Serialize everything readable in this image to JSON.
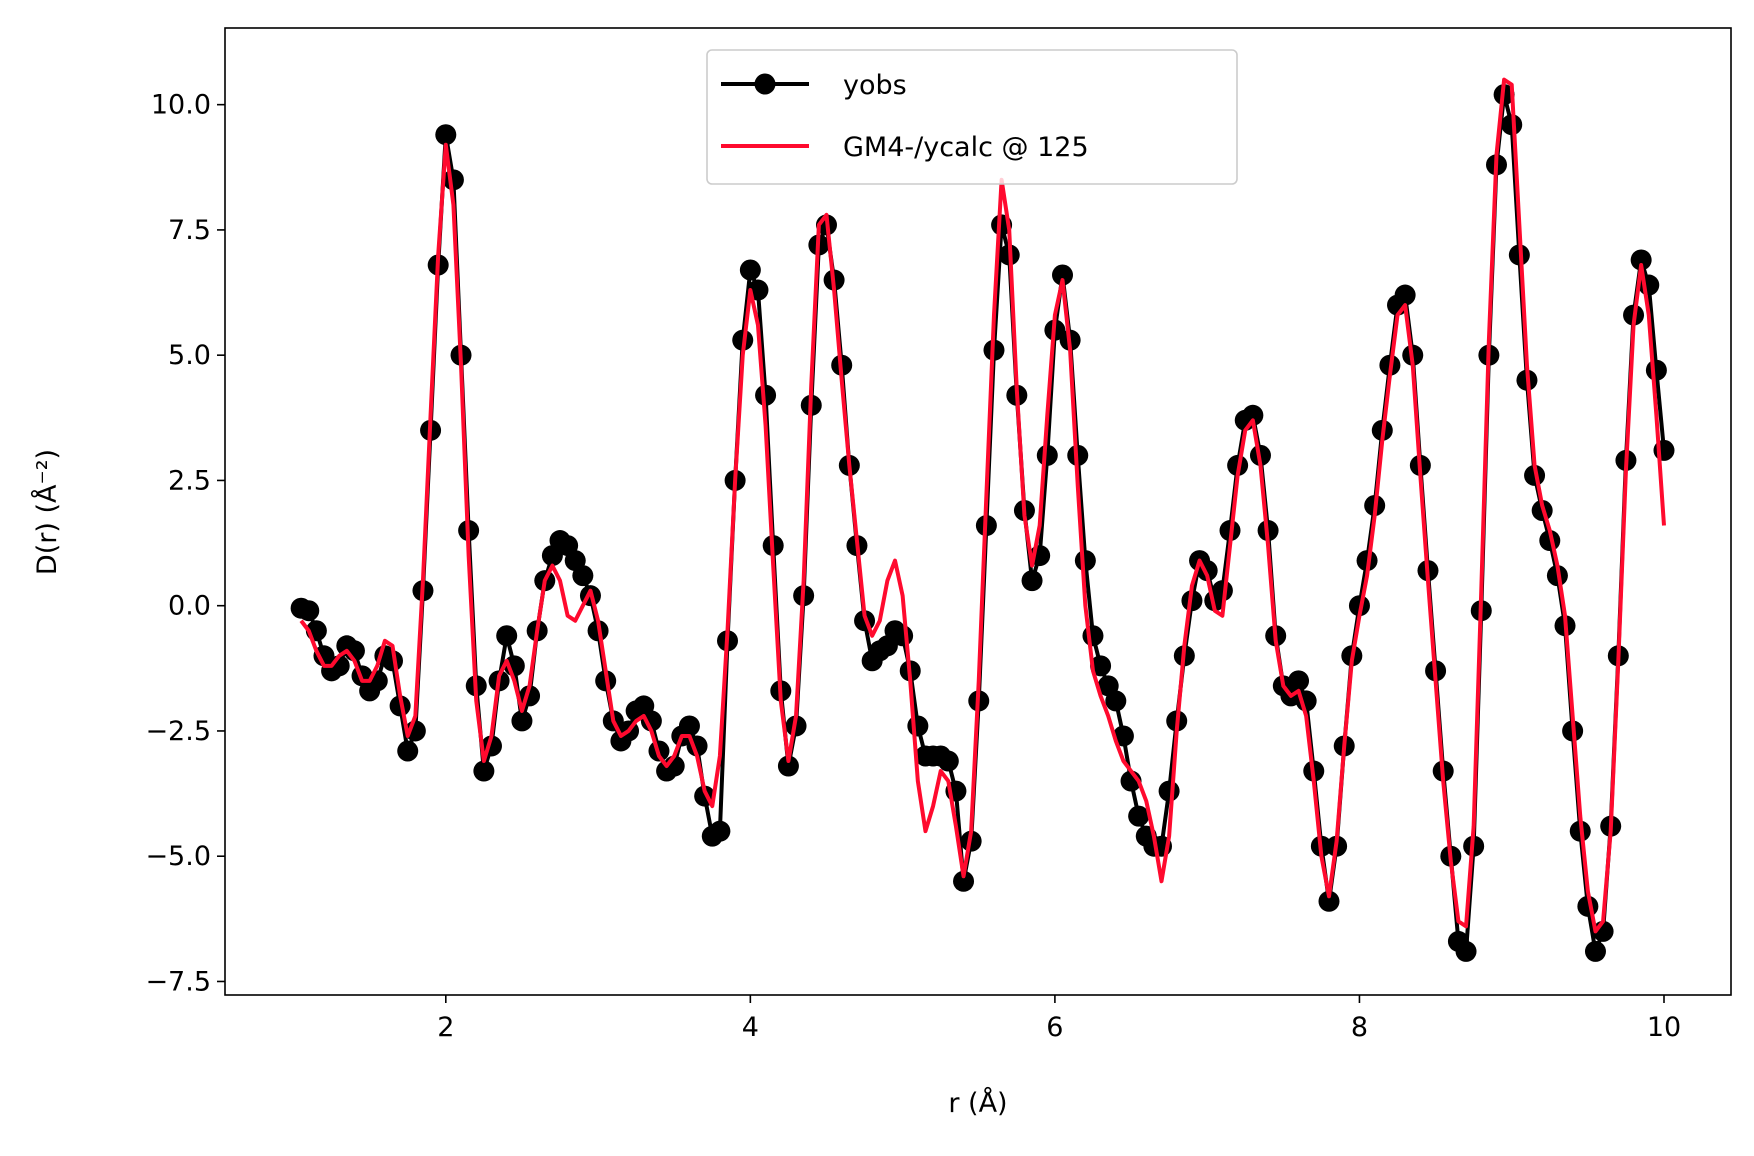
{
  "chart_data": {
    "type": "line",
    "xlabel": "r (Å)",
    "ylabel": "D(r) (Å⁻²)",
    "x": [
      1.05,
      1.1,
      1.15,
      1.2,
      1.25,
      1.3,
      1.35,
      1.4,
      1.45,
      1.5,
      1.55,
      1.6,
      1.65,
      1.7,
      1.75,
      1.8,
      1.85,
      1.9,
      1.95,
      2.0,
      2.05,
      2.1,
      2.15,
      2.2,
      2.25,
      2.3,
      2.35,
      2.4,
      2.45,
      2.5,
      2.55,
      2.6,
      2.65,
      2.7,
      2.75,
      2.8,
      2.85,
      2.9,
      2.95,
      3.0,
      3.05,
      3.1,
      3.15,
      3.2,
      3.25,
      3.3,
      3.35,
      3.4,
      3.45,
      3.5,
      3.55,
      3.6,
      3.65,
      3.7,
      3.75,
      3.8,
      3.85,
      3.9,
      3.95,
      4.0,
      4.05,
      4.1,
      4.15,
      4.2,
      4.25,
      4.3,
      4.35,
      4.4,
      4.45,
      4.5,
      4.55,
      4.6,
      4.65,
      4.7,
      4.75,
      4.8,
      4.85,
      4.9,
      4.95,
      5.0,
      5.05,
      5.1,
      5.15,
      5.2,
      5.25,
      5.3,
      5.35,
      5.4,
      5.45,
      5.5,
      5.55,
      5.6,
      5.65,
      5.7,
      5.75,
      5.8,
      5.85,
      5.9,
      5.95,
      6.0,
      6.05,
      6.1,
      6.15,
      6.2,
      6.25,
      6.3,
      6.35,
      6.4,
      6.45,
      6.5,
      6.55,
      6.6,
      6.65,
      6.7,
      6.75,
      6.8,
      6.85,
      6.9,
      6.95,
      7.0,
      7.05,
      7.1,
      7.15,
      7.2,
      7.25,
      7.3,
      7.35,
      7.4,
      7.45,
      7.5,
      7.55,
      7.6,
      7.65,
      7.7,
      7.75,
      7.8,
      7.85,
      7.9,
      7.95,
      8.0,
      8.05,
      8.1,
      8.15,
      8.2,
      8.25,
      8.3,
      8.35,
      8.4,
      8.45,
      8.5,
      8.55,
      8.6,
      8.65,
      8.7,
      8.75,
      8.8,
      8.85,
      8.9,
      8.95,
      9.0,
      9.05,
      9.1,
      9.15,
      9.2,
      9.25,
      9.3,
      9.35,
      9.4,
      9.45,
      9.5,
      9.55,
      9.6,
      9.65,
      9.7,
      9.75,
      9.8,
      9.85,
      9.9,
      9.95,
      10.0
    ],
    "series": [
      {
        "name": "yobs",
        "color": "#000000",
        "marker": true,
        "values": [
          -0.05,
          -0.1,
          -0.5,
          -1.0,
          -1.3,
          -1.2,
          -0.8,
          -0.9,
          -1.4,
          -1.7,
          -1.5,
          -1.0,
          -1.1,
          -2.0,
          -2.9,
          -2.5,
          0.3,
          3.5,
          6.8,
          9.4,
          8.5,
          5.0,
          1.5,
          -1.6,
          -3.3,
          -2.8,
          -1.5,
          -0.6,
          -1.2,
          -2.3,
          -1.8,
          -0.5,
          0.5,
          1.0,
          1.3,
          1.2,
          0.9,
          0.6,
          0.2,
          -0.5,
          -1.5,
          -2.3,
          -2.7,
          -2.5,
          -2.1,
          -2.0,
          -2.3,
          -2.9,
          -3.3,
          -3.2,
          -2.6,
          -2.4,
          -2.8,
          -3.8,
          -4.6,
          -4.5,
          -0.7,
          2.5,
          5.3,
          6.7,
          6.3,
          4.2,
          1.2,
          -1.7,
          -3.2,
          -2.4,
          0.2,
          4.0,
          7.2,
          7.6,
          6.5,
          4.8,
          2.8,
          1.2,
          -0.3,
          -1.1,
          -0.9,
          -0.8,
          -0.5,
          -0.6,
          -1.3,
          -2.4,
          -3.0,
          -3.0,
          -3.0,
          -3.1,
          -3.7,
          -5.5,
          -4.7,
          -1.9,
          1.6,
          5.1,
          7.6,
          7.0,
          4.2,
          1.9,
          0.5,
          1.0,
          3.0,
          5.5,
          6.6,
          5.3,
          3.0,
          0.9,
          -0.6,
          -1.2,
          -1.6,
          -1.9,
          -2.6,
          -3.5,
          -4.2,
          -4.6,
          -4.8,
          -4.8,
          -3.7,
          -2.3,
          -1.0,
          0.1,
          0.9,
          0.7,
          0.1,
          0.3,
          1.5,
          2.8,
          3.7,
          3.8,
          3.0,
          1.5,
          -0.6,
          -1.6,
          -1.8,
          -1.5,
          -1.9,
          -3.3,
          -4.8,
          -5.9,
          -4.8,
          -2.8,
          -1.0,
          0.0,
          0.9,
          2.0,
          3.5,
          4.8,
          6.0,
          6.2,
          5.0,
          2.8,
          0.7,
          -1.3,
          -3.3,
          -5.0,
          -6.7,
          -6.9,
          -4.8,
          -0.1,
          5.0,
          8.8,
          10.2,
          9.6,
          7.0,
          4.5,
          2.6,
          1.9,
          1.3,
          0.6,
          -0.4,
          -2.5,
          -4.5,
          -6.0,
          -6.9,
          -6.5,
          -4.4,
          -1.0,
          2.9,
          5.8,
          6.9,
          6.4,
          4.7,
          3.1
        ]
      },
      {
        "name": "GM4-/ycalc @ 125",
        "color": "#ff0a2e",
        "marker": false,
        "values": [
          -0.3,
          -0.5,
          -0.9,
          -1.2,
          -1.2,
          -1.0,
          -0.9,
          -1.1,
          -1.5,
          -1.5,
          -1.2,
          -0.7,
          -0.8,
          -1.8,
          -2.6,
          -2.2,
          0.5,
          3.8,
          7.0,
          9.2,
          8.0,
          4.8,
          1.0,
          -1.9,
          -3.1,
          -2.6,
          -1.4,
          -1.1,
          -1.5,
          -2.1,
          -1.6,
          -0.5,
          0.5,
          0.8,
          0.5,
          -0.2,
          -0.3,
          0.0,
          0.3,
          -0.3,
          -1.3,
          -2.3,
          -2.6,
          -2.5,
          -2.3,
          -2.2,
          -2.5,
          -3.0,
          -3.2,
          -3.0,
          -2.6,
          -2.6,
          -3.0,
          -3.7,
          -4.0,
          -3.0,
          -0.5,
          2.5,
          5.0,
          6.3,
          5.6,
          3.6,
          0.8,
          -1.9,
          -3.1,
          -2.2,
          0.5,
          4.4,
          7.6,
          7.8,
          6.3,
          4.5,
          2.8,
          1.3,
          -0.2,
          -0.6,
          -0.3,
          0.5,
          0.9,
          0.2,
          -1.5,
          -3.5,
          -4.5,
          -4.0,
          -3.3,
          -3.5,
          -4.4,
          -5.4,
          -4.5,
          -1.5,
          2.2,
          5.8,
          8.5,
          7.5,
          4.3,
          1.8,
          0.8,
          1.6,
          3.8,
          5.8,
          6.5,
          5.1,
          2.4,
          0.0,
          -1.3,
          -1.8,
          -2.2,
          -2.7,
          -3.1,
          -3.3,
          -3.5,
          -3.9,
          -4.6,
          -5.5,
          -4.6,
          -2.5,
          -0.8,
          0.4,
          0.9,
          0.6,
          -0.1,
          -0.2,
          1.2,
          2.6,
          3.5,
          3.7,
          2.8,
          1.2,
          -0.7,
          -1.6,
          -1.8,
          -1.7,
          -2.2,
          -3.5,
          -5.0,
          -5.8,
          -4.7,
          -2.8,
          -1.1,
          -0.2,
          0.6,
          1.8,
          3.3,
          4.6,
          5.8,
          6.0,
          4.8,
          2.6,
          0.5,
          -1.5,
          -3.5,
          -5.1,
          -6.3,
          -6.4,
          -4.4,
          0.3,
          5.3,
          9.0,
          10.5,
          10.4,
          7.6,
          4.8,
          2.8,
          2.0,
          1.5,
          0.8,
          -0.2,
          -2.2,
          -4.2,
          -5.7,
          -6.5,
          -6.3,
          -4.5,
          -1.1,
          2.7,
          5.6,
          6.8,
          5.8,
          3.8,
          1.6
        ]
      }
    ],
    "xlim": [
      0.55,
      10.44
    ],
    "ylim": [
      -7.77,
      11.53
    ],
    "xticks": [
      2,
      4,
      6,
      8,
      10
    ],
    "yticks": [
      {
        "value": -7.5,
        "label": "−7.5"
      },
      {
        "value": -5.0,
        "label": "−5.0"
      },
      {
        "value": -2.5,
        "label": "−2.5"
      },
      {
        "value": 0.0,
        "label": "0.0"
      },
      2.5,
      {
        "value": 5.0,
        "label": "5.0"
      },
      7.5,
      {
        "value": 10.0,
        "label": "10.0"
      }
    ],
    "grid": false,
    "legend": "upper center"
  }
}
